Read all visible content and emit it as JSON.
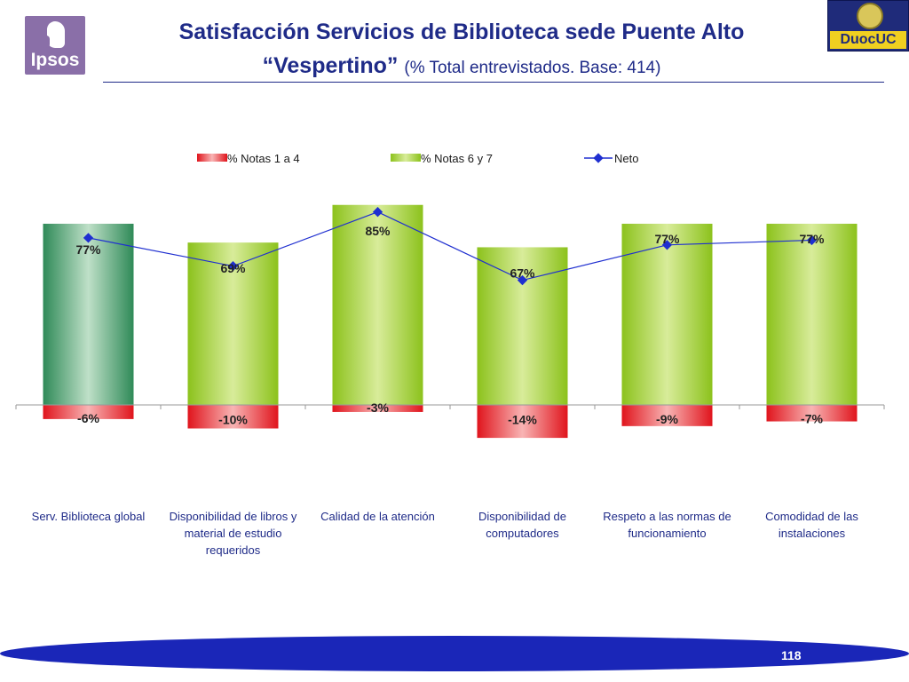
{
  "header": {
    "title_line1": "Satisfacción Servicios de Biblioteca sede Puente Alto",
    "title_line2_main": "“Vespertino”",
    "title_line2_sub": "(% Total entrevistados. Base: 414)"
  },
  "logos": {
    "ipsos": "Ipsos",
    "duoc": "DuocUC"
  },
  "page_number": "118",
  "colors": {
    "title": "#1f2b88",
    "red": "#e8252b",
    "green": "#9acd32",
    "dark_green": "#3a9a66",
    "line": "#1f2fd0"
  },
  "chart_data": {
    "type": "bar",
    "categories": [
      [
        "Serv. Biblioteca global"
      ],
      [
        "Disponibilidad de libros y",
        "material de estudio",
        "requeridos"
      ],
      [
        "Calidad de la atención"
      ],
      [
        "Disponibilidad de",
        "computadores"
      ],
      [
        "Respeto a las normas de",
        "funcionamiento"
      ],
      [
        "Comodidad de las",
        "instalaciones"
      ]
    ],
    "series": [
      {
        "name": "% Notas 1 a 4",
        "values": [
          -6,
          -10,
          -3,
          -14,
          -9,
          -7
        ],
        "labels": [
          "-6%",
          "-10%",
          "-3%",
          "-14%",
          "-9%",
          "-7%"
        ]
      },
      {
        "name": "% Notas 6 y 7",
        "values": [
          77,
          69,
          85,
          67,
          77,
          77
        ],
        "labels": [
          "77%",
          "69%",
          "85%",
          "67%",
          "77%",
          "77%"
        ]
      },
      {
        "name": "Neto",
        "values": [
          71,
          59,
          82,
          53,
          68,
          70
        ]
      }
    ],
    "legend": "top",
    "grid": false
  }
}
